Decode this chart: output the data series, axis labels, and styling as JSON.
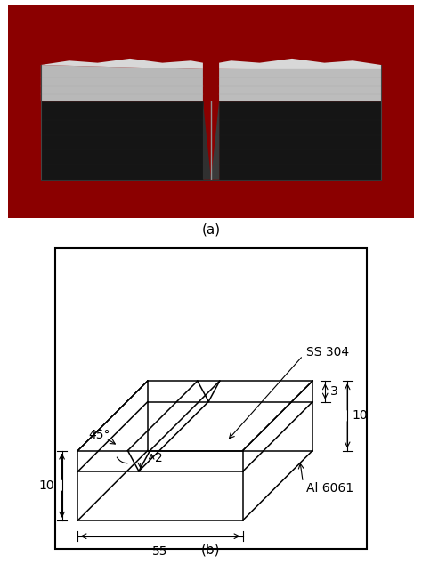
{
  "fig_width": 4.74,
  "fig_height": 6.34,
  "dpi": 100,
  "label_a": "(a)",
  "label_b": "(b)",
  "photo_bg": "#8B0000",
  "body_dark": "#1C1C1C",
  "body_dark2": "#111111",
  "silver_top": "#C8C8C8",
  "silver_mid": "#A0A0A0",
  "notch_silver": "#B0B8B8",
  "line_color": "#000000",
  "dim_55": "55",
  "dim_10_left": "10",
  "dim_2": "2",
  "dim_3": "3",
  "dim_10_right": "10",
  "angle_label": "45°",
  "label_ss": "SS 304",
  "label_al": "Al 6061"
}
